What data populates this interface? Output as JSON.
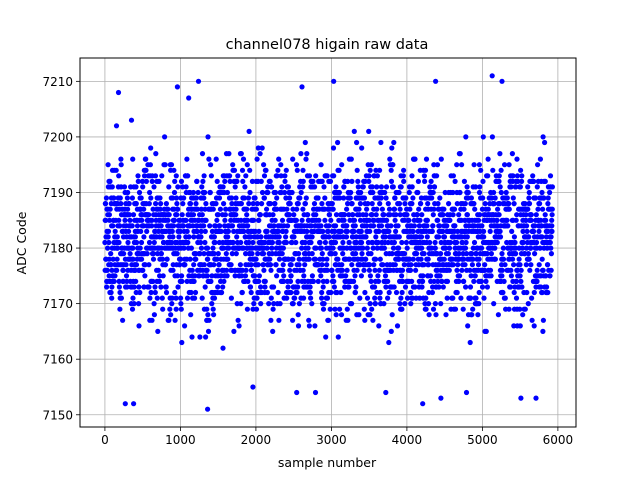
{
  "chart_data": {
    "type": "scatter",
    "title": "channel078 higain raw data",
    "xlabel": "sample number",
    "ylabel": "ADC Code",
    "xlim": [
      -330,
      6240
    ],
    "ylim": [
      7147.8,
      7214.2
    ],
    "xticks": [
      0,
      1000,
      2000,
      3000,
      4000,
      5000,
      6000
    ],
    "yticks": [
      7150,
      7160,
      7170,
      7180,
      7190,
      7200,
      7210
    ],
    "grid": true,
    "marker_color": "#0000ff",
    "series": [
      {
        "n_samples": 5930,
        "x_range": [
          0,
          5929
        ],
        "y_range": [
          7151,
          7211
        ],
        "center": 7182,
        "spread": 7,
        "outliers": [
          [
            270,
            7152
          ],
          [
            380,
            7152
          ],
          [
            180,
            7208
          ],
          [
            1240,
            7210
          ],
          [
            1360,
            7151
          ],
          [
            4380,
            7210
          ],
          [
            5130,
            7211
          ],
          [
            5260,
            7210
          ],
          [
            3030,
            7210
          ],
          [
            4210,
            7152
          ],
          [
            1960,
            7155
          ],
          [
            2540,
            7154
          ],
          [
            2790,
            7154
          ],
          [
            3720,
            7154
          ],
          [
            4450,
            7153
          ],
          [
            4790,
            7154
          ],
          [
            5510,
            7153
          ],
          [
            5710,
            7153
          ],
          [
            960,
            7209
          ],
          [
            2610,
            7209
          ]
        ]
      }
    ]
  }
}
